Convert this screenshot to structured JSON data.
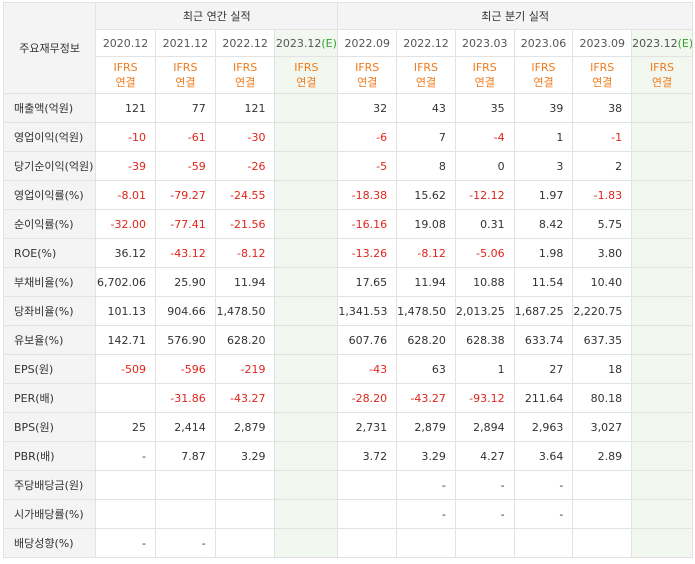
{
  "header": {
    "row_label": "주요재무정보",
    "annual_title": "최근 연간 실적",
    "quarter_title": "최근 분기 실적",
    "annual_periods": [
      "2020.12",
      "2021.12",
      "2022.12",
      "2023.12"
    ],
    "annual_estimate_suffix": "(E)",
    "quarter_periods": [
      "2022.09",
      "2022.12",
      "2023.03",
      "2023.06",
      "2023.09",
      "2023.12"
    ],
    "quarter_estimate_suffix": "(E)",
    "ifrs_top": "IFRS",
    "ifrs_bottom": "연결"
  },
  "rows": [
    {
      "label": "매출액(억원)",
      "values": [
        "121",
        "77",
        "121",
        "",
        "32",
        "43",
        "35",
        "39",
        "38",
        ""
      ]
    },
    {
      "label": "영업이익(억원)",
      "values": [
        "-10",
        "-61",
        "-30",
        "",
        "-6",
        "7",
        "-4",
        "1",
        "-1",
        ""
      ]
    },
    {
      "label": "당기순이익(억원)",
      "values": [
        "-39",
        "-59",
        "-26",
        "",
        "-5",
        "8",
        "0",
        "3",
        "2",
        ""
      ]
    },
    {
      "label": "영업이익률(%)",
      "values": [
        "-8.01",
        "-79.27",
        "-24.55",
        "",
        "-18.38",
        "15.62",
        "-12.12",
        "1.97",
        "-1.83",
        ""
      ]
    },
    {
      "label": "순이익률(%)",
      "values": [
        "-32.00",
        "-77.41",
        "-21.56",
        "",
        "-16.16",
        "19.08",
        "0.31",
        "8.42",
        "5.75",
        ""
      ]
    },
    {
      "label": "ROE(%)",
      "values": [
        "36.12",
        "-43.12",
        "-8.12",
        "",
        "-13.26",
        "-8.12",
        "-5.06",
        "1.98",
        "3.80",
        ""
      ]
    },
    {
      "label": "부채비율(%)",
      "values": [
        "6,702.06",
        "25.90",
        "11.94",
        "",
        "17.65",
        "11.94",
        "10.88",
        "11.54",
        "10.40",
        ""
      ]
    },
    {
      "label": "당좌비율(%)",
      "values": [
        "101.13",
        "904.66",
        "1,478.50",
        "",
        "1,341.53",
        "1,478.50",
        "2,013.25",
        "1,687.25",
        "2,220.75",
        ""
      ]
    },
    {
      "label": "유보율(%)",
      "values": [
        "142.71",
        "576.90",
        "628.20",
        "",
        "607.76",
        "628.20",
        "628.38",
        "633.74",
        "637.35",
        ""
      ]
    },
    {
      "label": "EPS(원)",
      "values": [
        "-509",
        "-596",
        "-219",
        "",
        "-43",
        "63",
        "1",
        "27",
        "18",
        ""
      ]
    },
    {
      "label": "PER(배)",
      "values": [
        "",
        "-31.86",
        "-43.27",
        "",
        "-28.20",
        "-43.27",
        "-93.12",
        "211.64",
        "80.18",
        ""
      ]
    },
    {
      "label": "BPS(원)",
      "values": [
        "25",
        "2,414",
        "2,879",
        "",
        "2,731",
        "2,879",
        "2,894",
        "2,963",
        "3,027",
        ""
      ]
    },
    {
      "label": "PBR(배)",
      "values": [
        "-",
        "7.87",
        "3.29",
        "",
        "3.72",
        "3.29",
        "4.27",
        "3.64",
        "2.89",
        ""
      ]
    },
    {
      "label": "주당배당금(원)",
      "values": [
        "",
        "",
        "",
        "",
        "",
        "-",
        "-",
        "-",
        "",
        ""
      ]
    },
    {
      "label": "시가배당률(%)",
      "values": [
        "",
        "",
        "",
        "",
        "",
        "-",
        "-",
        "-",
        "",
        ""
      ]
    },
    {
      "label": "배당성향(%)",
      "values": [
        "-",
        "-",
        "",
        "",
        "",
        "",
        "",
        "",
        "",
        ""
      ]
    }
  ]
}
